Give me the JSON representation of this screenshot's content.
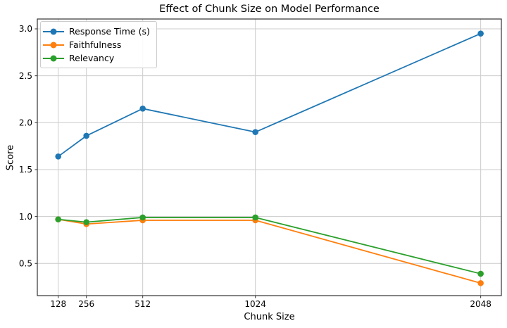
{
  "figure": {
    "background": "#ffffff"
  },
  "chart_data": {
    "type": "line",
    "title": "Effect of Chunk Size on Model Performance",
    "xlabel": "Chunk Size",
    "ylabel": "Score",
    "categories": [
      128,
      256,
      512,
      1024,
      2048
    ],
    "series": [
      {
        "name": "Response Time (s)",
        "color": "#1f77b4",
        "marker": "circle",
        "values": [
          1.64,
          1.86,
          2.15,
          1.9,
          2.95
        ]
      },
      {
        "name": "Faithfulness",
        "color": "#ff7f0e",
        "marker": "circle",
        "values": [
          0.97,
          0.92,
          0.96,
          0.96,
          0.29
        ]
      },
      {
        "name": "Relevancy",
        "color": "#2ca02c",
        "marker": "circle",
        "values": [
          0.97,
          0.94,
          0.99,
          0.99,
          0.39
        ]
      }
    ],
    "xticks": [
      128,
      256,
      512,
      1024,
      2048
    ],
    "xtick_labels": [
      "128",
      "256",
      "512",
      "1024",
      "2048"
    ],
    "yticks": [
      0.5,
      1.0,
      1.5,
      2.0,
      2.5,
      3.0
    ],
    "ytick_labels": [
      "0.5",
      "1.0",
      "1.5",
      "2.0",
      "2.5",
      "3.0"
    ],
    "xlim": [
      33,
      2142
    ],
    "ylim": [
      0.157,
      3.105
    ],
    "x_scale": "linear",
    "grid": true,
    "legend_position": "upper-left",
    "colors": {
      "grid": "#cccccc",
      "spine": "#333333",
      "text": "#000000",
      "background": "#ffffff"
    }
  }
}
